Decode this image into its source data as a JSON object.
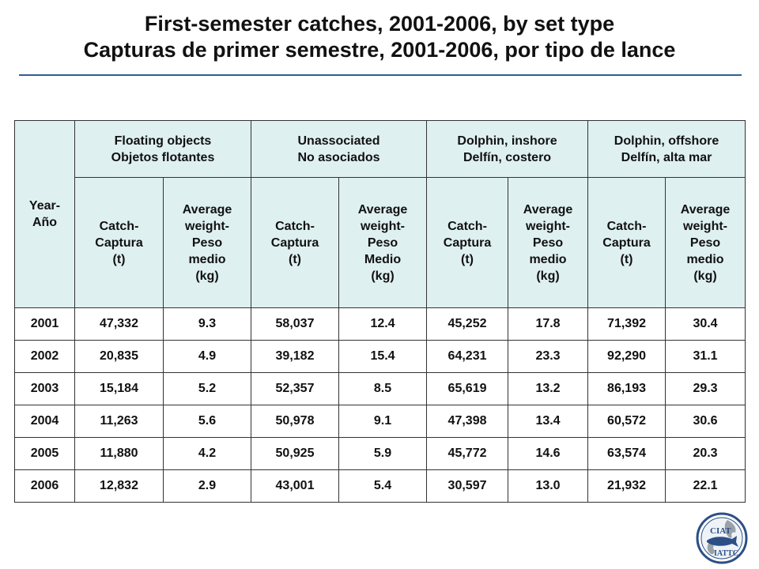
{
  "title": {
    "line1": "First-semester catches, 2001-2006, by set type",
    "line2": "Capturas de primer semestre, 2001-2006, por tipo de lance"
  },
  "table": {
    "year_header": {
      "en": "Year-",
      "es": "Año"
    },
    "groups": [
      {
        "en": "Floating objects",
        "es": "Objetos flotantes"
      },
      {
        "en": "Unassociated",
        "es": "No asociados"
      },
      {
        "en": "Dolphin, inshore",
        "es": "Delfín, costero"
      },
      {
        "en": "Dolphin, offshore",
        "es": "Delfín, alta mar"
      }
    ],
    "sub_headers": [
      [
        "Catch-",
        "Captura",
        "(t)"
      ],
      [
        "Average",
        "weight-",
        "Peso",
        "medio",
        "(kg)"
      ],
      [
        "Catch-",
        "Captura",
        "(t)"
      ],
      [
        "Average",
        "weight-",
        "Peso",
        "Medio",
        "(kg)"
      ],
      [
        "Catch-",
        "Captura",
        "(t)"
      ],
      [
        "Average",
        "weight-",
        "Peso",
        "medio",
        "(kg)"
      ],
      [
        "Catch-",
        "Captura",
        "(t)"
      ],
      [
        "Average",
        "weight-",
        "Peso",
        "medio",
        "(kg)"
      ]
    ],
    "rows": [
      [
        "2001",
        "47,332",
        "9.3",
        "58,037",
        "12.4",
        "45,252",
        "17.8",
        "71,392",
        "30.4"
      ],
      [
        "2002",
        "20,835",
        "4.9",
        "39,182",
        "15.4",
        "64,231",
        "23.3",
        "92,290",
        "31.1"
      ],
      [
        "2003",
        "15,184",
        "5.2",
        "52,357",
        "8.5",
        "65,619",
        "13.2",
        "86,193",
        "29.3"
      ],
      [
        "2004",
        "11,263",
        "5.6",
        "50,978",
        "9.1",
        "47,398",
        "13.4",
        "60,572",
        "30.6"
      ],
      [
        "2005",
        "11,880",
        "4.2",
        "50,925",
        "5.9",
        "45,772",
        "14.6",
        "63,574",
        "20.3"
      ],
      [
        "2006",
        "12,832",
        "2.9",
        "43,001",
        "5.4",
        "30,597",
        "13.0",
        "21,932",
        "22.1"
      ]
    ]
  },
  "logo": {
    "line1": "CIAT",
    "line2": "IATTC"
  }
}
